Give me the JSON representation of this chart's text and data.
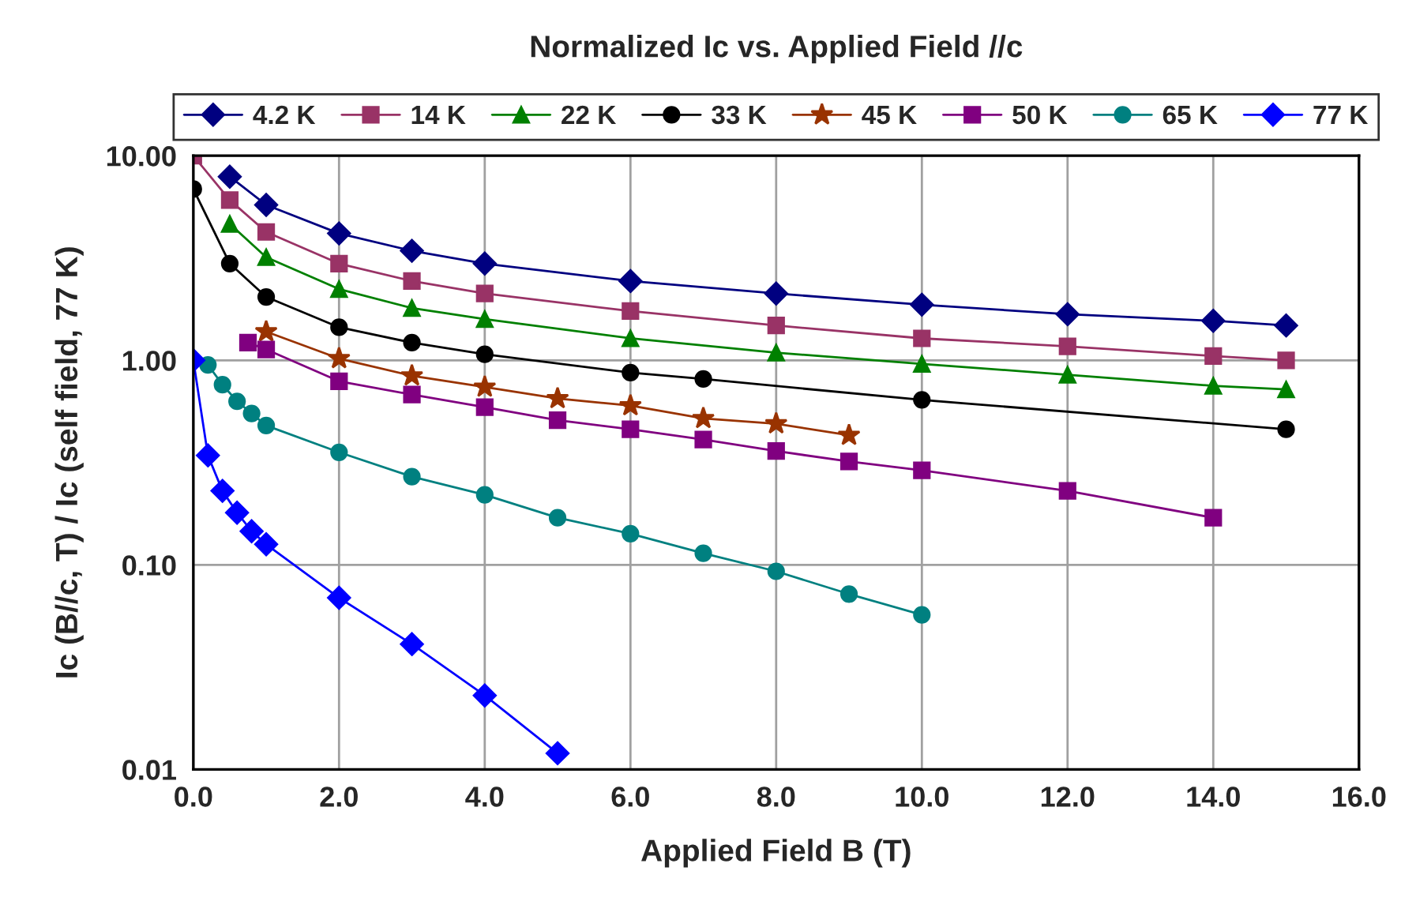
{
  "chart_data": {
    "type": "line",
    "title": "Normalized Ic vs. Applied Field //c",
    "xlabel": "Applied Field B (T)",
    "ylabel": "Ic (B//c, T) / Ic (self field, 77 K)",
    "log": "y",
    "grid": true,
    "legend": "top",
    "xlim": [
      0,
      16
    ],
    "xticks": [
      {
        "value": 0,
        "label": "0.0"
      },
      {
        "value": 2,
        "label": "2.0"
      },
      {
        "value": 4,
        "label": "4.0"
      },
      {
        "value": 6,
        "label": "6.0"
      },
      {
        "value": 8,
        "label": "8.0"
      },
      {
        "value": 10,
        "label": "10.0"
      },
      {
        "value": 12,
        "label": "12.0"
      },
      {
        "value": 14,
        "label": "14.0"
      },
      {
        "value": 16,
        "label": "16.0"
      }
    ],
    "ylim": [
      0.01,
      10
    ],
    "yticks": [
      {
        "value": 0.01,
        "label": "0.01"
      },
      {
        "value": 0.1,
        "label": "0.10"
      },
      {
        "value": 1,
        "label": "1.00"
      },
      {
        "value": 10,
        "label": "10.00"
      }
    ],
    "series": [
      {
        "name": "4.2 K",
        "color": "#000080",
        "marker": "diamond",
        "x": [
          0.5,
          1,
          2,
          3,
          4,
          6,
          8,
          10,
          12,
          14,
          15
        ],
        "values": [
          7.9,
          5.75,
          4.17,
          3.43,
          2.97,
          2.44,
          2.12,
          1.87,
          1.68,
          1.56,
          1.48
        ]
      },
      {
        "name": "14 K",
        "color": "#993366",
        "marker": "square",
        "x": [
          0,
          0.5,
          1,
          2,
          3,
          4,
          6,
          8,
          10,
          12,
          14,
          15
        ],
        "values": [
          10,
          6.07,
          4.24,
          2.97,
          2.44,
          2.12,
          1.74,
          1.48,
          1.28,
          1.17,
          1.05,
          1.0
        ]
      },
      {
        "name": "22 K",
        "color": "#008000",
        "marker": "triangle",
        "x": [
          0.5,
          1,
          2,
          3,
          4,
          6,
          8,
          10,
          12,
          14,
          15
        ],
        "values": [
          4.64,
          3.19,
          2.23,
          1.8,
          1.59,
          1.28,
          1.09,
          0.96,
          0.85,
          0.75,
          0.72
        ]
      },
      {
        "name": "33 K",
        "color": "#000000",
        "marker": "circle",
        "x": [
          0,
          0.5,
          1,
          2,
          3,
          4,
          6,
          7,
          10,
          15
        ],
        "values": [
          6.87,
          2.97,
          2.04,
          1.45,
          1.22,
          1.07,
          0.87,
          0.81,
          0.64,
          0.46
        ]
      },
      {
        "name": "45 K",
        "color": "#993300",
        "marker": "star",
        "x": [
          1,
          2,
          3,
          4,
          5,
          6,
          7,
          8,
          9
        ],
        "values": [
          1.38,
          1.02,
          0.84,
          0.74,
          0.65,
          0.6,
          0.52,
          0.49,
          0.43
        ]
      },
      {
        "name": "50 K",
        "color": "#800080",
        "marker": "square",
        "x": [
          0.75,
          1,
          2,
          3,
          4,
          5,
          6,
          7,
          8,
          9,
          10,
          12,
          14
        ],
        "values": [
          1.22,
          1.13,
          0.79,
          0.68,
          0.59,
          0.51,
          0.46,
          0.41,
          0.36,
          0.32,
          0.29,
          0.23,
          0.17
        ]
      },
      {
        "name": "65 K",
        "color": "#008080",
        "marker": "circle",
        "x": [
          0.2,
          0.4,
          0.6,
          0.8,
          1,
          2,
          3,
          4,
          5,
          6,
          7,
          8,
          9,
          10
        ],
        "values": [
          0.95,
          0.76,
          0.63,
          0.55,
          0.48,
          0.355,
          0.27,
          0.22,
          0.17,
          0.142,
          0.114,
          0.093,
          0.072,
          0.057
        ]
      },
      {
        "name": "77 K",
        "color": "#0000ff",
        "marker": "diamond",
        "x": [
          0,
          0.2,
          0.4,
          0.6,
          0.8,
          1,
          2,
          3,
          4,
          5
        ],
        "values": [
          1.0,
          0.343,
          0.23,
          0.18,
          0.146,
          0.126,
          0.069,
          0.041,
          0.023,
          0.012
        ]
      }
    ]
  }
}
